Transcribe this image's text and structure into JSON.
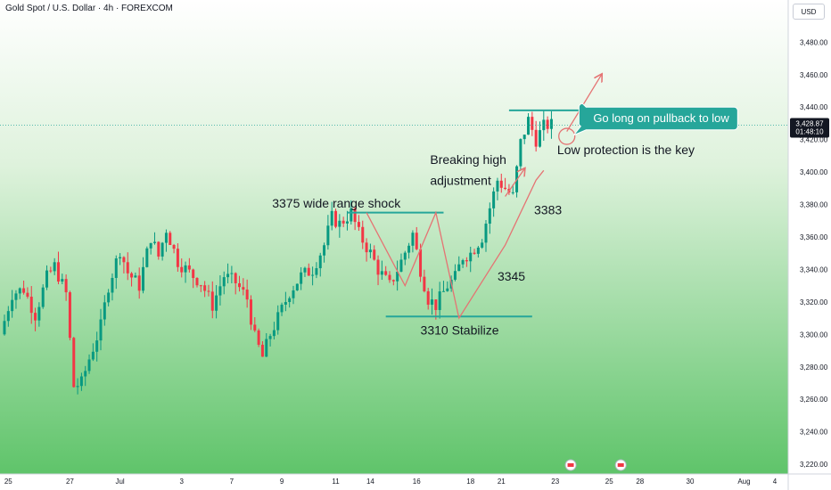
{
  "header": {
    "title": "Gold Spot / U.S. Dollar · 4h · FOREXCOM",
    "currency": "USD"
  },
  "chart_data": {
    "type": "candlestick",
    "y_ticks": [
      3220,
      3240,
      3260,
      3280,
      3300,
      3320,
      3340,
      3360,
      3380,
      3400,
      3420,
      3440,
      3460,
      3480
    ],
    "y_tick_labels": [
      "3,220.00",
      "3,240.00",
      "3,260.00",
      "3,280.00",
      "3,300.00",
      "3,320.00",
      "3,340.00",
      "3,360.00",
      "3,380.00",
      "3,400.00",
      "3,420.00",
      "3,440.00",
      "3,460.00",
      "3,480.00"
    ],
    "ylim": [
      3214,
      3506
    ],
    "x_ticks": [
      {
        "label": "25",
        "bar": 1
      },
      {
        "label": "27",
        "bar": 17
      },
      {
        "label": "Jul",
        "bar": 30
      },
      {
        "label": "3",
        "bar": 46
      },
      {
        "label": "7",
        "bar": 59
      },
      {
        "label": "9",
        "bar": 72
      },
      {
        "label": "11",
        "bar": 86
      },
      {
        "label": "14",
        "bar": 95
      },
      {
        "label": "16",
        "bar": 107
      },
      {
        "label": "18",
        "bar": 121
      },
      {
        "label": "21",
        "bar": 129
      },
      {
        "label": "23",
        "bar": 143
      },
      {
        "label": "25",
        "bar": 157
      },
      {
        "label": "28",
        "bar": 165
      },
      {
        "label": "30",
        "bar": 178
      },
      {
        "label": "Aug",
        "bar": 192
      },
      {
        "label": "4",
        "bar": 200
      }
    ],
    "current_price": "3,428.87",
    "countdown": "01:48:10",
    "current_price_value": 3428.87,
    "colors": {
      "up": "#089981",
      "down": "#f23645",
      "line": "#26a69a",
      "pattern": "#e57373",
      "callout": "#26a69a",
      "background_top": "#ffffff",
      "background_bottom": "#5fc46a"
    },
    "annotations": [
      {
        "text": "3375 wide range shock"
      },
      {
        "text": "Breaking high"
      },
      {
        "text": "adjustment"
      },
      {
        "text": "3383"
      },
      {
        "text": "3345"
      },
      {
        "text": "3310 Stabilize"
      },
      {
        "text": "Low protection is the key"
      }
    ],
    "callout": "Go long on pullback to low",
    "levels": [
      {
        "price": 3375,
        "from_bar": 89,
        "to_bar": 114
      },
      {
        "price": 3311,
        "from_bar": 99,
        "to_bar": 137
      },
      {
        "price": 3438,
        "from_bar": 131,
        "to_bar": 167
      }
    ],
    "events_bars": [
      147,
      160
    ]
  }
}
